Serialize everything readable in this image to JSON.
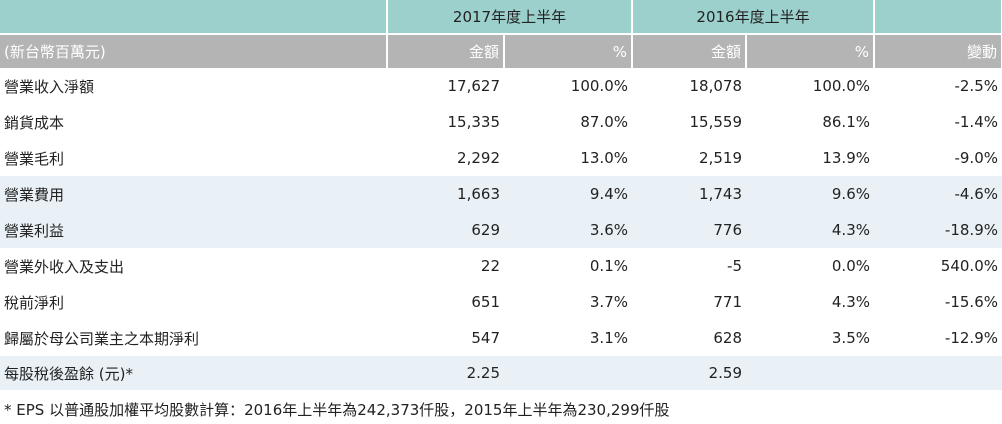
{
  "header": {
    "period_2017": "2017年度上半年",
    "period_2016": "2016年度上半年",
    "unit_label": "(新台幣百萬元)",
    "amount_2017": "金額",
    "pct_2017": "%",
    "amount_2016": "金額",
    "pct_2016": "%",
    "change": "變動"
  },
  "rows": [
    {
      "label": "營業收入淨額",
      "a2017": "17,627",
      "p2017": "100.0%",
      "a2016": "18,078",
      "p2016": "100.0%",
      "chg": "-2.5%"
    },
    {
      "label": "銷貨成本",
      "a2017": "15,335",
      "p2017": "87.0%",
      "a2016": "15,559",
      "p2016": "86.1%",
      "chg": "-1.4%"
    },
    {
      "label": "營業毛利",
      "a2017": "2,292",
      "p2017": "13.0%",
      "a2016": "2,519",
      "p2016": "13.9%",
      "chg": "-9.0%"
    },
    {
      "label": "營業費用",
      "a2017": "1,663",
      "p2017": "9.4%",
      "a2016": "1,743",
      "p2016": "9.6%",
      "chg": "-4.6%"
    },
    {
      "label": "營業利益",
      "a2017": "629",
      "p2017": "3.6%",
      "a2016": "776",
      "p2016": "4.3%",
      "chg": "-18.9%"
    },
    {
      "label": "營業外收入及支出",
      "a2017": "22",
      "p2017": "0.1%",
      "a2016": "-5",
      "p2016": "0.0%",
      "chg": "540.0%"
    },
    {
      "label": "稅前淨利",
      "a2017": "651",
      "p2017": "3.7%",
      "a2016": "771",
      "p2016": "4.3%",
      "chg": "-15.6%"
    },
    {
      "label": "歸屬於母公司業主之本期淨利",
      "a2017": "547",
      "p2017": "3.1%",
      "a2016": "628",
      "p2016": "3.5%",
      "chg": "-12.9%"
    },
    {
      "label": "每股稅後盈餘 (元)*",
      "a2017": "2.25",
      "p2017": "",
      "a2016": "2.59",
      "p2016": "",
      "chg": ""
    }
  ],
  "footnote": "* EPS 以普通股加權平均股數計算：2016年上半年為242,373仟股，2015年上半年為230,299仟股"
}
